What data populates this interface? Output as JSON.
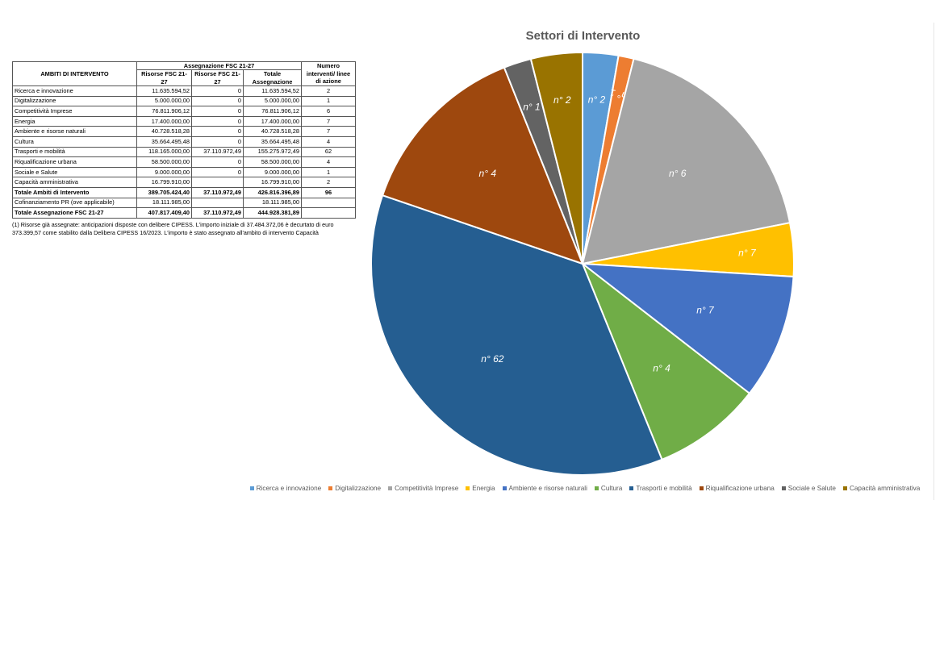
{
  "table": {
    "header_ambiti": "AMBITI DI INTERVENTO",
    "header_group": "Assegnazione FSC 21-27",
    "header_col1": "Risorse FSC 21-27",
    "header_col2": "Risorse FSC 21-27",
    "header_col3": "Totale Assegnazione",
    "header_numero": "Numero interventi/ linee di azione",
    "rows": [
      {
        "name": "Ricerca e innovazione",
        "r1": "11.635.594,52",
        "r2": "0",
        "tot": "11.635.594,52",
        "n": "2"
      },
      {
        "name": "Digitalizzazione",
        "r1": "5.000.000,00",
        "r2": "0",
        "tot": "5.000.000,00",
        "n": "1"
      },
      {
        "name": "Competitività Imprese",
        "r1": "76.811.906,12",
        "r2": "0",
        "tot": "76.811.906,12",
        "n": "6"
      },
      {
        "name": "Energia",
        "r1": "17.400.000,00",
        "r2": "0",
        "tot": "17.400.000,00",
        "n": "7"
      },
      {
        "name": "Ambiente e risorse naturali",
        "r1": "40.728.518,28",
        "r2": "0",
        "tot": "40.728.518,28",
        "n": "7"
      },
      {
        "name": "Cultura",
        "r1": "35.664.495,48",
        "r2": "0",
        "tot": "35.664.495,48",
        "n": "4"
      },
      {
        "name": "Trasporti e mobilità",
        "r1": "118.165.000,00",
        "r2": "37.110.972,49",
        "tot": "155.275.972,49",
        "n": "62"
      },
      {
        "name": "Riqualificazione urbana",
        "r1": "58.500.000,00",
        "r2": "0",
        "tot": "58.500.000,00",
        "n": "4"
      },
      {
        "name": "Sociale e Salute",
        "r1": "9.000.000,00",
        "r2": "0",
        "tot": "9.000.000,00",
        "n": "1"
      },
      {
        "name": "Capacità amministrativa",
        "r1": "16.799.910,00",
        "r2": "",
        "tot": "16.799.910,00",
        "n": "2"
      }
    ],
    "totale_ambiti": {
      "name": "Totale Ambiti di Intervento",
      "r1": "389.705.424,40",
      "r2": "37.110.972,49",
      "tot": "426.816.396,89",
      "n": "96"
    },
    "cofinanziamento": {
      "name": "Cofinanziamento PR (ove applicabile)",
      "r1": "18.111.985,00",
      "r2": "",
      "tot": "18.111.985,00",
      "n": ""
    },
    "totale_assegnazione": {
      "name": "Totale Assegnazione FSC 21-27",
      "r1": "407.817.409,40",
      "r2": "37.110.972,49",
      "tot": "444.928.381,89",
      "n": ""
    }
  },
  "footnote": "(1) Risorse già assegnate: anticipazioni disposte con delibere CIPESS. L'importo iniziale di 37.484.372,06 è decurtato di euro 373.399,57 come stabilito dalla Delibera CIPESS 16/2023. L'importo è stato assegnato all'ambito di intervento Capacità",
  "chart_data": {
    "type": "pie",
    "title": "Settori di Intervento",
    "legend_position": "bottom",
    "slices": [
      {
        "name": "Ricerca e innovazione",
        "value": 11635594.52,
        "label": "n° 2",
        "color": "#5b9bd5"
      },
      {
        "name": "Digitalizzazione",
        "value": 5000000.0,
        "label": "n° 1",
        "color": "#ed7d31"
      },
      {
        "name": "Competitività Imprese",
        "value": 76811906.12,
        "label": "n° 6",
        "color": "#a5a5a5"
      },
      {
        "name": "Energia",
        "value": 17400000.0,
        "label": "n° 7",
        "color": "#ffc000"
      },
      {
        "name": "Ambiente e risorse naturali",
        "value": 40728518.28,
        "label": "n° 7",
        "color": "#4472c4"
      },
      {
        "name": "Cultura",
        "value": 35664495.48,
        "label": "n° 4",
        "color": "#70ad47"
      },
      {
        "name": "Trasporti e mobilità",
        "value": 155275972.49,
        "label": "n° 62",
        "color": "#255e91"
      },
      {
        "name": "Riqualificazione urbana",
        "value": 58500000.0,
        "label": "n° 4",
        "color": "#9e480e"
      },
      {
        "name": "Sociale e Salute",
        "value": 9000000.0,
        "label": "n° 1",
        "color": "#636363"
      },
      {
        "name": "Capacità amministrativa",
        "value": 16799910.0,
        "label": "n° 2",
        "color": "#997300"
      }
    ]
  }
}
